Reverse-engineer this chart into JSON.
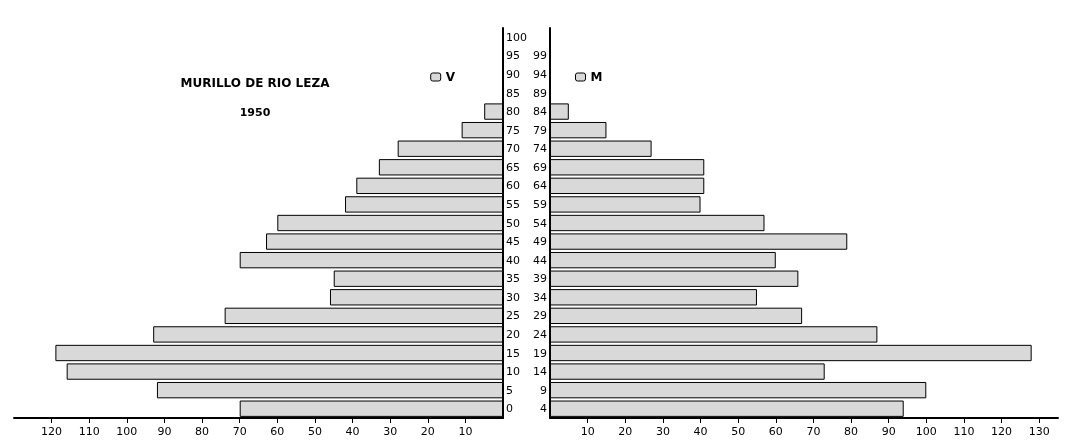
{
  "chart_data": [
    {
      "type": "bar",
      "orientation": "horizontal",
      "title": "MURILLO DE RIO LEZA",
      "subtitle": "1950",
      "legend": "top right",
      "grid": false,
      "categories": [
        "100",
        "95",
        "90",
        "85",
        "80",
        "75",
        "70",
        "65",
        "60",
        "55",
        "50",
        "45",
        "40",
        "35",
        "30",
        "25",
        "20",
        "15",
        "10",
        "5",
        "0"
      ],
      "series": [
        {
          "name": "V",
          "color": "#d9d9d9",
          "values": [
            null,
            null,
            null,
            null,
            5,
            11,
            28,
            33,
            39,
            42,
            60,
            63,
            70,
            45,
            46,
            74,
            93,
            119,
            116,
            92,
            70
          ]
        }
      ],
      "xlim": [
        130,
        0
      ],
      "xticks": [
        120,
        110,
        100,
        90,
        80,
        70,
        60,
        50,
        40,
        30,
        20,
        10
      ]
    },
    {
      "type": "bar",
      "orientation": "horizontal",
      "legend": "top left",
      "grid": false,
      "categories": [
        null,
        "99",
        "94",
        "89",
        "84",
        "79",
        "74",
        "69",
        "64",
        "59",
        "54",
        "49",
        "44",
        "39",
        "34",
        "29",
        "24",
        "19",
        "14",
        "9",
        "4"
      ],
      "series": [
        {
          "name": "M",
          "color": "#d9d9d9",
          "values": [
            null,
            null,
            null,
            null,
            5,
            15,
            27,
            41,
            41,
            40,
            57,
            79,
            60,
            66,
            55,
            67,
            87,
            128,
            73,
            100,
            94
          ]
        }
      ],
      "xlim": [
        0,
        135
      ],
      "xticks": [
        10,
        20,
        30,
        40,
        50,
        60,
        70,
        80,
        90,
        100,
        110,
        120,
        130
      ]
    }
  ]
}
